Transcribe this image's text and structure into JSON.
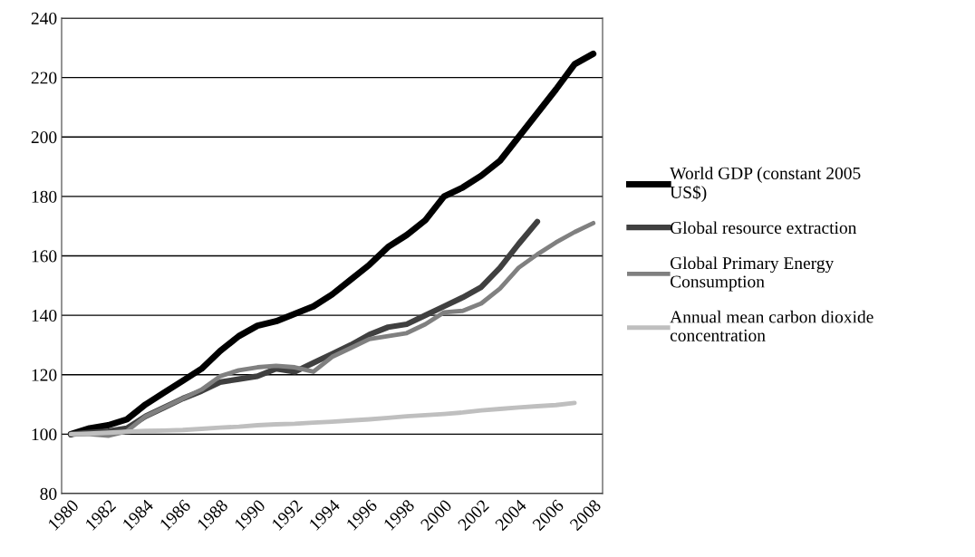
{
  "chart_data": {
    "type": "line",
    "categories": [
      "1980",
      null,
      "1982",
      null,
      "1984",
      null,
      "1986",
      null,
      "1988",
      null,
      "1990",
      null,
      "1992",
      null,
      "1994",
      null,
      "1996",
      null,
      "1998",
      null,
      "2000",
      null,
      "2002",
      null,
      "2004",
      null,
      "2006",
      null,
      "2008"
    ],
    "series": [
      {
        "name": "World GDP (constant 2005 US$)",
        "color": "#000000",
        "values": [
          100,
          102,
          103,
          105,
          110,
          114,
          118,
          122,
          128,
          133,
          136.5,
          138,
          140.5,
          143,
          147,
          152,
          157,
          163,
          167,
          172,
          180,
          183,
          187,
          192,
          200,
          208,
          216,
          224.5,
          228
        ]
      },
      {
        "name": "Global resource extraction",
        "color": "#404040",
        "values": [
          100,
          100.5,
          101,
          102,
          106,
          109,
          112,
          114.5,
          117.5,
          118.5,
          119.5,
          122,
          121,
          124,
          127,
          130,
          133.5,
          136,
          137,
          140,
          143,
          146,
          149.5,
          156,
          164,
          171.5,
          null,
          null,
          null
        ]
      },
      {
        "name": "Global Primary Energy Consumption",
        "color": "#808080",
        "values": [
          100,
          100,
          99.5,
          101,
          106,
          109,
          112,
          115,
          119.5,
          121.5,
          122.5,
          123,
          122.5,
          121,
          126,
          129,
          132,
          133,
          134,
          137,
          141,
          141.5,
          144,
          149,
          156,
          160.5,
          164.5,
          168,
          171
        ]
      },
      {
        "name": "Annual mean carbon dioxide concentration",
        "color": "#bfbfbf",
        "values": [
          100,
          100.2,
          100.5,
          100.8,
          101.1,
          101.2,
          101.4,
          101.8,
          102.2,
          102.5,
          103,
          103.3,
          103.5,
          103.9,
          104.2,
          104.6,
          105,
          105.5,
          106,
          106.4,
          106.8,
          107.3,
          108,
          108.5,
          109,
          109.4,
          109.8,
          110.5,
          null
        ]
      }
    ],
    "ylim": [
      80,
      240
    ],
    "yticks": [
      80,
      100,
      120,
      140,
      160,
      180,
      200,
      220,
      240
    ],
    "grid": "y",
    "legend": "right",
    "marker": "none",
    "line_style": "solid"
  }
}
